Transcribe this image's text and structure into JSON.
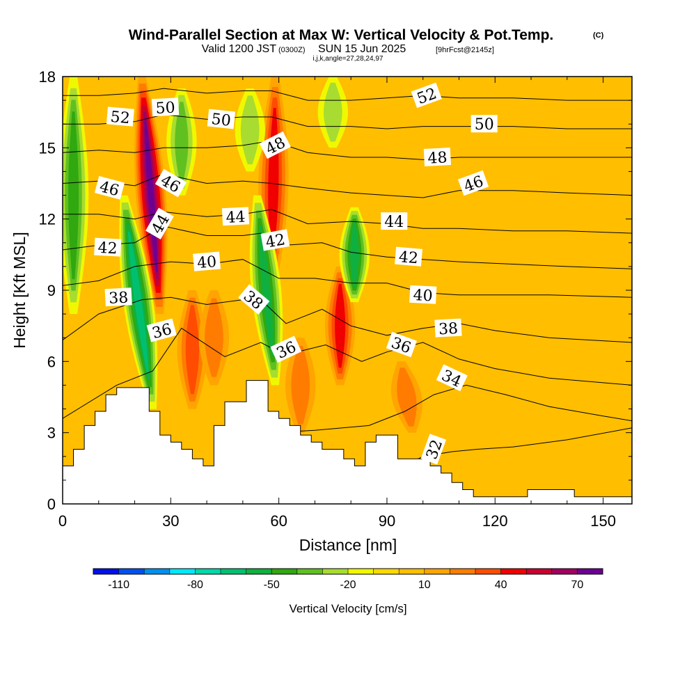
{
  "title": {
    "main": "Wind-Parallel Section at Max W: Vertical Velocity & Pot.Temp.",
    "copyright": "(C)",
    "valid_prefix": "Valid 1200 JST",
    "valid_utc": "(0300Z)",
    "valid_date": "SUN 15 Jun 2025",
    "forecast": "[9hrFcst@2145z]",
    "indices": "i,j,k,angle=27,28,24,97"
  },
  "colorbar": {
    "title": "Vertical Velocity [cm/s]",
    "tick_labels": [
      "-110",
      "-80",
      "-50",
      "-20",
      "10",
      "40",
      "70"
    ],
    "levels": [
      -120,
      -110,
      -100,
      -90,
      -80,
      -70,
      -60,
      -50,
      -40,
      -30,
      -20,
      -10,
      0,
      10,
      20,
      30,
      40,
      50,
      60,
      70,
      80
    ],
    "colors": [
      "#0010e8",
      "#0050f0",
      "#0090f0",
      "#00e8f8",
      "#00d8a8",
      "#00c070",
      "#10b040",
      "#30a810",
      "#60c020",
      "#a8dc30",
      "#f0f800",
      "#ffd800",
      "#ffbe00",
      "#ffa400",
      "#ff7c00",
      "#ff4c00",
      "#f00000",
      "#c80030",
      "#a00060",
      "#6c0090"
    ]
  },
  "chart_data": {
    "type": "heatmap",
    "title": "Wind-Parallel Section at Max W: Vertical Velocity & Pot.Temp.",
    "xlabel": "Distance [nm]",
    "ylabel": "Height [Kft MSL]",
    "xlim": [
      0,
      158
    ],
    "ylim": [
      0,
      18
    ],
    "x_ticks": [
      0,
      30,
      60,
      90,
      120,
      150
    ],
    "y_ticks": [
      0,
      3,
      6,
      9,
      12,
      15,
      18
    ],
    "fill_field": "Vertical Velocity [cm/s]",
    "contour_field": "Potential Temperature",
    "background_value_cm_s": 5,
    "updraft_bands": [
      {
        "x_bottom": 27,
        "x_top": 22,
        "y_bottom": 8,
        "y_top": 18,
        "peak_cm_s": 75
      },
      {
        "x_bottom": 36,
        "x_top": 36,
        "y_bottom": 4,
        "y_top": 9,
        "peak_cm_s": 35
      },
      {
        "x_bottom": 58,
        "x_top": 59,
        "y_bottom": 9,
        "y_top": 18,
        "peak_cm_s": 40
      },
      {
        "x_bottom": 77,
        "x_top": 77,
        "y_bottom": 5,
        "y_top": 10,
        "peak_cm_s": 45
      },
      {
        "x_bottom": 97,
        "x_top": 94,
        "y_bottom": 3,
        "y_top": 6,
        "peak_cm_s": 25
      },
      {
        "x_bottom": 42,
        "x_top": 42,
        "y_bottom": 5,
        "y_top": 9,
        "peak_cm_s": 20
      },
      {
        "x_bottom": 66,
        "x_top": 66,
        "y_bottom": 3,
        "y_top": 7,
        "peak_cm_s": 20
      }
    ],
    "downdraft_bands": [
      {
        "x_bottom": 25,
        "x_top": 17,
        "y_bottom": 4,
        "y_top": 13,
        "min_cm_s": -55
      },
      {
        "x_bottom": 59,
        "x_top": 54,
        "y_bottom": 5,
        "y_top": 13,
        "min_cm_s": -45
      },
      {
        "x_bottom": 81,
        "x_top": 81,
        "y_bottom": 8.5,
        "y_top": 12.5,
        "min_cm_s": -45
      },
      {
        "x_bottom": 33,
        "x_top": 33,
        "y_bottom": 13,
        "y_top": 17.5,
        "min_cm_s": -25
      },
      {
        "x_bottom": 52,
        "x_top": 52,
        "y_bottom": 14,
        "y_top": 17.5,
        "min_cm_s": -20
      },
      {
        "x_bottom": 75,
        "x_top": 75,
        "y_bottom": 15,
        "y_top": 18,
        "min_cm_s": -20
      },
      {
        "x_bottom": 3,
        "x_top": 3,
        "y_bottom": 8,
        "y_top": 18,
        "min_cm_s": -35
      }
    ],
    "terrain": [
      [
        0,
        1.6
      ],
      [
        3,
        1.6
      ],
      [
        3,
        2.3
      ],
      [
        6,
        2.3
      ],
      [
        6,
        3.3
      ],
      [
        9,
        3.3
      ],
      [
        9,
        3.9
      ],
      [
        12,
        3.9
      ],
      [
        12,
        4.6
      ],
      [
        15,
        4.6
      ],
      [
        15,
        4.9
      ],
      [
        24,
        4.9
      ],
      [
        24,
        3.9
      ],
      [
        27,
        3.9
      ],
      [
        27,
        2.9
      ],
      [
        30,
        2.9
      ],
      [
        30,
        2.6
      ],
      [
        33,
        2.6
      ],
      [
        33,
        2.3
      ],
      [
        36,
        2.3
      ],
      [
        36,
        1.9
      ],
      [
        39,
        1.9
      ],
      [
        39,
        1.6
      ],
      [
        42,
        1.6
      ],
      [
        42,
        3.3
      ],
      [
        45,
        3.3
      ],
      [
        45,
        4.3
      ],
      [
        51,
        4.3
      ],
      [
        51,
        5.2
      ],
      [
        57,
        5.2
      ],
      [
        57,
        3.9
      ],
      [
        60,
        3.9
      ],
      [
        60,
        3.6
      ],
      [
        63,
        3.6
      ],
      [
        63,
        3.3
      ],
      [
        66,
        3.3
      ],
      [
        66,
        2.9
      ],
      [
        69,
        2.9
      ],
      [
        69,
        2.6
      ],
      [
        72,
        2.6
      ],
      [
        72,
        2.3
      ],
      [
        78,
        2.3
      ],
      [
        78,
        1.9
      ],
      [
        81,
        1.9
      ],
      [
        81,
        1.6
      ],
      [
        84,
        1.6
      ],
      [
        84,
        2.6
      ],
      [
        87,
        2.6
      ],
      [
        87,
        2.9
      ],
      [
        93,
        2.9
      ],
      [
        93,
        1.9
      ],
      [
        102,
        1.9
      ],
      [
        102,
        1.6
      ],
      [
        105,
        1.6
      ],
      [
        105,
        1.3
      ],
      [
        108,
        1.3
      ],
      [
        108,
        0.9
      ],
      [
        111,
        0.9
      ],
      [
        111,
        0.6
      ],
      [
        114,
        0.6
      ],
      [
        114,
        0.3
      ],
      [
        129,
        0.3
      ],
      [
        129,
        0.6
      ],
      [
        142,
        0.6
      ],
      [
        142,
        0.3
      ],
      [
        158,
        0.3
      ],
      [
        158,
        0
      ],
      [
        0,
        0
      ]
    ],
    "contours": [
      {
        "value": 32,
        "points": [
          [
            88,
            0
          ],
          [
            92,
            1.4
          ],
          [
            100,
            2.0
          ],
          [
            108,
            2.2
          ],
          [
            115,
            2.3
          ],
          [
            125,
            2.4
          ],
          [
            140,
            2.7
          ],
          [
            158,
            3.2
          ]
        ]
      },
      {
        "value": 34,
        "points": [
          [
            58,
            3.0
          ],
          [
            70,
            3.1
          ],
          [
            85,
            3.3
          ],
          [
            95,
            3.9
          ],
          [
            103,
            4.6
          ],
          [
            112,
            5.0
          ],
          [
            123,
            4.6
          ],
          [
            135,
            4.1
          ],
          [
            150,
            3.7
          ],
          [
            158,
            3.5
          ]
        ]
      },
      {
        "value": 36,
        "points": [
          [
            0,
            3.6
          ],
          [
            15,
            5.0
          ],
          [
            25,
            5.6
          ],
          [
            33,
            7.4
          ],
          [
            45,
            6.2
          ],
          [
            55,
            6.8
          ],
          [
            60,
            6.4
          ],
          [
            65,
            6.4
          ],
          [
            73,
            6.7
          ],
          [
            83,
            6.0
          ],
          [
            90,
            6.4
          ],
          [
            100,
            6.8
          ],
          [
            110,
            6.1
          ],
          [
            120,
            5.7
          ],
          [
            135,
            5.3
          ],
          [
            158,
            5.0
          ]
        ]
      },
      {
        "value": 38,
        "points": [
          [
            0,
            6.9
          ],
          [
            10,
            8.0
          ],
          [
            22,
            8.6
          ],
          [
            30,
            8.7
          ],
          [
            40,
            8.4
          ],
          [
            50,
            8.6
          ],
          [
            55,
            8.6
          ],
          [
            62,
            7.6
          ],
          [
            72,
            8.2
          ],
          [
            80,
            7.5
          ],
          [
            90,
            7.1
          ],
          [
            100,
            7.4
          ],
          [
            110,
            7.6
          ],
          [
            120,
            7.3
          ],
          [
            135,
            7.0
          ],
          [
            158,
            6.8
          ]
        ]
      },
      {
        "value": 40,
        "points": [
          [
            0,
            9.2
          ],
          [
            10,
            9.4
          ],
          [
            20,
            10.0
          ],
          [
            30,
            10.2
          ],
          [
            40,
            10.1
          ],
          [
            50,
            10.3
          ],
          [
            60,
            9.5
          ],
          [
            70,
            9.5
          ],
          [
            80,
            9.3
          ],
          [
            90,
            9.3
          ],
          [
            100,
            8.9
          ],
          [
            110,
            8.8
          ],
          [
            120,
            8.8
          ],
          [
            135,
            8.8
          ],
          [
            158,
            8.7
          ]
        ]
      },
      {
        "value": 42,
        "points": [
          [
            0,
            10.7
          ],
          [
            10,
            10.9
          ],
          [
            20,
            11.0
          ],
          [
            28,
            11.7
          ],
          [
            40,
            11.3
          ],
          [
            50,
            11.3
          ],
          [
            55,
            11.4
          ],
          [
            62,
            10.9
          ],
          [
            72,
            11.0
          ],
          [
            80,
            10.6
          ],
          [
            90,
            10.4
          ],
          [
            100,
            10.3
          ],
          [
            110,
            10.2
          ],
          [
            125,
            10.1
          ],
          [
            140,
            10.0
          ],
          [
            158,
            9.9
          ]
        ]
      },
      {
        "value": 44,
        "points": [
          [
            0,
            12.2
          ],
          [
            10,
            12.2
          ],
          [
            20,
            12.0
          ],
          [
            28,
            12.3
          ],
          [
            40,
            12.1
          ],
          [
            50,
            12.2
          ],
          [
            58,
            12.4
          ],
          [
            68,
            11.8
          ],
          [
            80,
            11.9
          ],
          [
            90,
            11.8
          ],
          [
            100,
            11.6
          ],
          [
            110,
            11.6
          ],
          [
            125,
            11.5
          ],
          [
            140,
            11.5
          ],
          [
            158,
            11.4
          ]
        ]
      },
      {
        "value": 46,
        "points": [
          [
            0,
            13.5
          ],
          [
            10,
            13.6
          ],
          [
            20,
            13.4
          ],
          [
            28,
            13.9
          ],
          [
            40,
            13.5
          ],
          [
            50,
            13.6
          ],
          [
            58,
            13.5
          ],
          [
            68,
            13.3
          ],
          [
            80,
            13.1
          ],
          [
            90,
            13.0
          ],
          [
            100,
            12.9
          ],
          [
            110,
            13.2
          ],
          [
            125,
            13.2
          ],
          [
            140,
            13.1
          ],
          [
            158,
            13.0
          ]
        ]
      },
      {
        "value": 48,
        "points": [
          [
            0,
            14.8
          ],
          [
            10,
            14.9
          ],
          [
            20,
            14.8
          ],
          [
            28,
            15.0
          ],
          [
            40,
            15.0
          ],
          [
            50,
            15.1
          ],
          [
            58,
            15.3
          ],
          [
            68,
            14.8
          ],
          [
            80,
            14.6
          ],
          [
            90,
            14.6
          ],
          [
            100,
            14.5
          ],
          [
            110,
            14.6
          ],
          [
            125,
            14.6
          ],
          [
            140,
            14.6
          ],
          [
            158,
            14.6
          ]
        ]
      },
      {
        "value": 50,
        "points": [
          [
            0,
            16.0
          ],
          [
            10,
            16.0
          ],
          [
            20,
            16.1
          ],
          [
            28,
            16.4
          ],
          [
            40,
            16.2
          ],
          [
            50,
            16.3
          ],
          [
            58,
            16.3
          ],
          [
            68,
            15.9
          ],
          [
            80,
            15.9
          ],
          [
            90,
            15.8
          ],
          [
            100,
            15.9
          ],
          [
            110,
            15.9
          ],
          [
            125,
            15.9
          ],
          [
            140,
            15.8
          ],
          [
            158,
            15.8
          ]
        ]
      },
      {
        "value": 52,
        "points": [
          [
            0,
            17.2
          ],
          [
            10,
            17.2
          ],
          [
            20,
            17.3
          ],
          [
            28,
            17.5
          ],
          [
            40,
            17.3
          ],
          [
            50,
            17.4
          ],
          [
            58,
            17.4
          ],
          [
            68,
            17.0
          ],
          [
            80,
            17.0
          ],
          [
            90,
            17.1
          ],
          [
            100,
            17.2
          ],
          [
            110,
            17.1
          ],
          [
            125,
            17.1
          ],
          [
            140,
            17.0
          ],
          [
            158,
            17.0
          ]
        ]
      }
    ],
    "contour_labels": [
      {
        "text": "52",
        "x": 16,
        "y": 16.3,
        "angle": 5
      },
      {
        "text": "50",
        "x": 28.5,
        "y": 16.7,
        "angle": -3
      },
      {
        "text": "50",
        "x": 44,
        "y": 16.2,
        "angle": 6
      },
      {
        "text": "52",
        "x": 101,
        "y": 17.2,
        "angle": -20
      },
      {
        "text": "50",
        "x": 117,
        "y": 16.0,
        "angle": 0
      },
      {
        "text": "48",
        "x": 59,
        "y": 15.1,
        "angle": -27
      },
      {
        "text": "48",
        "x": 104,
        "y": 14.6,
        "angle": -3
      },
      {
        "text": "46",
        "x": 13,
        "y": 13.3,
        "angle": 15
      },
      {
        "text": "46",
        "x": 30,
        "y": 13.5,
        "angle": 30
      },
      {
        "text": "46",
        "x": 114,
        "y": 13.5,
        "angle": -20
      },
      {
        "text": "44",
        "x": 27,
        "y": 11.8,
        "angle": -60
      },
      {
        "text": "44",
        "x": 48,
        "y": 12.1,
        "angle": -3
      },
      {
        "text": "44",
        "x": 92,
        "y": 11.9,
        "angle": 0
      },
      {
        "text": "42",
        "x": 12.5,
        "y": 10.8,
        "angle": 3
      },
      {
        "text": "42",
        "x": 59,
        "y": 11.1,
        "angle": -10
      },
      {
        "text": "42",
        "x": 96,
        "y": 10.4,
        "angle": 5
      },
      {
        "text": "40",
        "x": 40,
        "y": 10.2,
        "angle": -5
      },
      {
        "text": "40",
        "x": 100,
        "y": 8.8,
        "angle": 3
      },
      {
        "text": "38",
        "x": 15.5,
        "y": 8.7,
        "angle": -3
      },
      {
        "text": "38",
        "x": 53,
        "y": 8.6,
        "angle": 40
      },
      {
        "text": "38",
        "x": 107,
        "y": 7.4,
        "angle": -3
      },
      {
        "text": "36",
        "x": 27.5,
        "y": 7.3,
        "angle": -15
      },
      {
        "text": "36",
        "x": 62,
        "y": 6.5,
        "angle": -25
      },
      {
        "text": "36",
        "x": 94,
        "y": 6.7,
        "angle": 20
      },
      {
        "text": "34",
        "x": 108,
        "y": 5.3,
        "angle": 25
      },
      {
        "text": "32",
        "x": 103,
        "y": 2.3,
        "angle": -70
      }
    ]
  }
}
